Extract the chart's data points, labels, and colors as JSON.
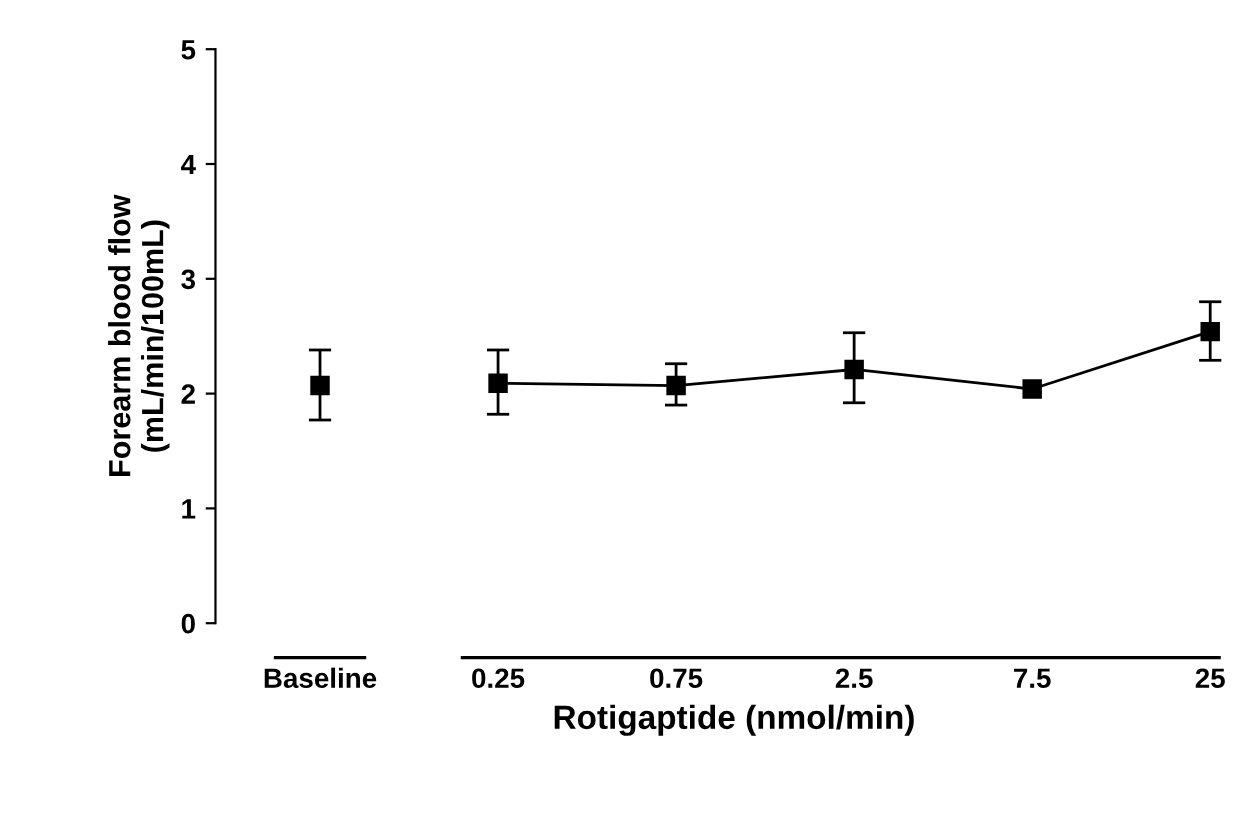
{
  "chart_data": {
    "type": "line",
    "xlabel": "Rotigaptide (nmol/min)",
    "ylabel": "Forearm blood flow\n(mL/min/100mL)",
    "categories": [
      "Baseline",
      "0.25",
      "0.75",
      "2.5",
      "7.5",
      "25"
    ],
    "series": [
      {
        "type": "scatter",
        "color": "#000000",
        "values": [
          2.07,
          null,
          null,
          null,
          null,
          null
        ],
        "errors": [
          [
            1.77,
            2.38
          ],
          null,
          null,
          null,
          null,
          null
        ]
      },
      {
        "color": "#000000",
        "values": [
          null,
          2.09,
          2.07,
          2.21,
          2.04,
          2.54
        ],
        "errors": [
          null,
          [
            1.82,
            2.38
          ],
          [
            1.9,
            2.26
          ],
          [
            1.92,
            2.53
          ],
          null,
          [
            2.29,
            2.8
          ]
        ]
      }
    ],
    "ylim": [
      0,
      5
    ],
    "yticks": [
      0,
      1,
      2,
      3,
      4,
      5
    ],
    "marker": "square",
    "grid": false,
    "legend": false
  }
}
